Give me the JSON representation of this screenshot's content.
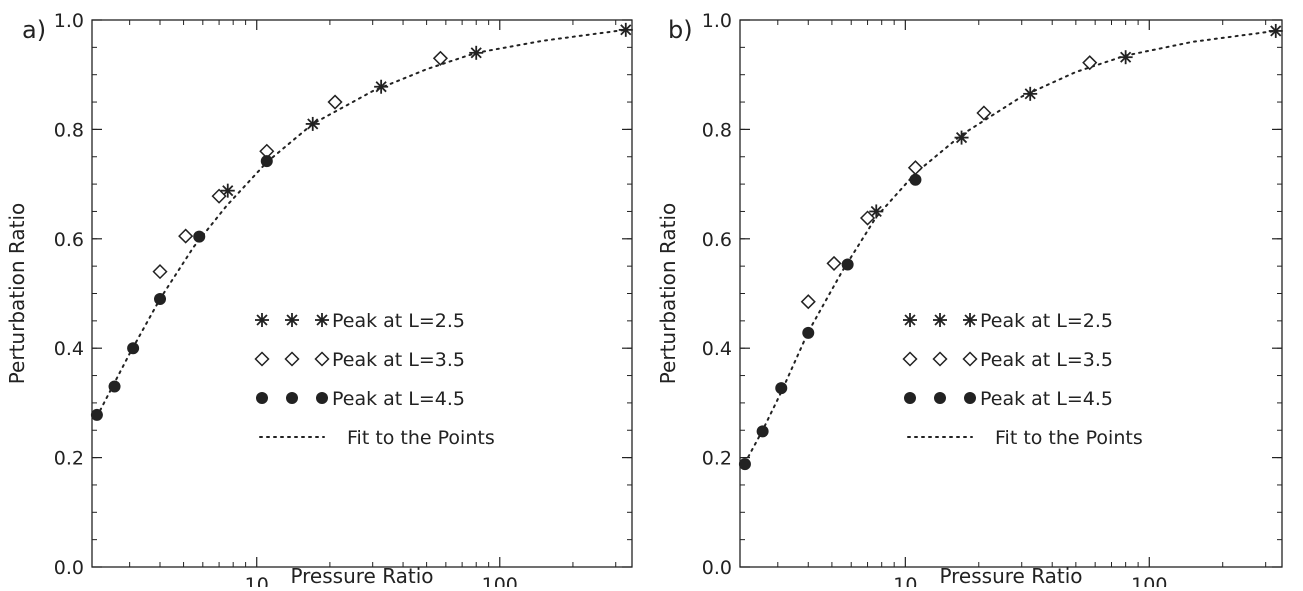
{
  "chart_data": [
    {
      "type": "scatter",
      "panel_label": "a)",
      "xlabel": "Pressure Ratio",
      "ylabel": "Perturbation Ratio",
      "x_scale": "log",
      "xlim": [
        2.1,
        350
      ],
      "ylim": [
        0.0,
        1.0
      ],
      "x_ticks": [
        10,
        100
      ],
      "x_tick_labels": [
        "10",
        "100"
      ],
      "y_ticks": [
        0.0,
        0.2,
        0.4,
        0.6,
        0.8,
        1.0
      ],
      "y_tick_labels": [
        "0.0",
        "0.2",
        "0.4",
        "0.6",
        "0.8",
        "1.0"
      ],
      "legend_position": "lower-right",
      "series": [
        {
          "name": "Peak at L=2.5",
          "marker": "asterisk",
          "points": [
            [
              7.6,
              0.688
            ],
            [
              17.0,
              0.81
            ],
            [
              32.5,
              0.878
            ],
            [
              80.0,
              0.94
            ],
            [
              330.0,
              0.982
            ]
          ]
        },
        {
          "name": "Peak at L=3.5",
          "marker": "diamond",
          "points": [
            [
              4.0,
              0.54
            ],
            [
              5.1,
              0.605
            ],
            [
              7.0,
              0.678
            ],
            [
              11.0,
              0.76
            ],
            [
              21.0,
              0.85
            ],
            [
              57.0,
              0.93
            ]
          ]
        },
        {
          "name": "Peak at L=4.5",
          "marker": "filled-circle",
          "points": [
            [
              2.2,
              0.278
            ],
            [
              2.6,
              0.33
            ],
            [
              3.1,
              0.4
            ],
            [
              4.0,
              0.49
            ],
            [
              5.8,
              0.604
            ],
            [
              11.0,
              0.742
            ]
          ]
        },
        {
          "name": "Fit to the Points",
          "marker": "dotted-line",
          "points": [
            [
              2.2,
              0.275
            ],
            [
              3.0,
              0.39
            ],
            [
              4.0,
              0.49
            ],
            [
              5.5,
              0.585
            ],
            [
              7.5,
              0.66
            ],
            [
              11.0,
              0.74
            ],
            [
              17.0,
              0.81
            ],
            [
              30.0,
              0.87
            ],
            [
              50.0,
              0.91
            ],
            [
              80.0,
              0.94
            ],
            [
              150.0,
              0.962
            ],
            [
              330.0,
              0.982
            ]
          ]
        }
      ]
    },
    {
      "type": "scatter",
      "panel_label": "b)",
      "xlabel": "Pressure Ratio",
      "ylabel": "Perturbation Ratio",
      "x_scale": "log",
      "xlim": [
        2.1,
        350
      ],
      "ylim": [
        0.0,
        1.0
      ],
      "x_ticks": [
        10,
        100
      ],
      "x_tick_labels": [
        "10",
        "100"
      ],
      "y_ticks": [
        0.0,
        0.2,
        0.4,
        0.6,
        0.8,
        1.0
      ],
      "y_tick_labels": [
        "0.0",
        "0.2",
        "0.4",
        "0.6",
        "0.8",
        "1.0"
      ],
      "legend_position": "lower-right",
      "series": [
        {
          "name": "Peak at L=2.5",
          "marker": "asterisk",
          "points": [
            [
              7.6,
              0.65
            ],
            [
              17.0,
              0.785
            ],
            [
              32.5,
              0.865
            ],
            [
              80.0,
              0.932
            ],
            [
              330.0,
              0.98
            ]
          ]
        },
        {
          "name": "Peak at L=3.5",
          "marker": "diamond",
          "points": [
            [
              4.0,
              0.485
            ],
            [
              5.1,
              0.555
            ],
            [
              7.0,
              0.638
            ],
            [
              11.0,
              0.73
            ],
            [
              21.0,
              0.83
            ],
            [
              57.0,
              0.922
            ]
          ]
        },
        {
          "name": "Peak at L=4.5",
          "marker": "filled-circle",
          "points": [
            [
              2.2,
              0.188
            ],
            [
              2.6,
              0.248
            ],
            [
              3.1,
              0.327
            ],
            [
              4.0,
              0.428
            ],
            [
              5.8,
              0.553
            ],
            [
              11.0,
              0.708
            ]
          ]
        },
        {
          "name": "Fit to the Points",
          "marker": "dotted-line",
          "points": [
            [
              2.2,
              0.19
            ],
            [
              2.6,
              0.25
            ],
            [
              3.1,
              0.32
            ],
            [
              4.0,
              0.43
            ],
            [
              5.5,
              0.54
            ],
            [
              7.6,
              0.64
            ],
            [
              11.0,
              0.72
            ],
            [
              17.0,
              0.79
            ],
            [
              30.0,
              0.86
            ],
            [
              50.0,
              0.905
            ],
            [
              80.0,
              0.935
            ],
            [
              150.0,
              0.96
            ],
            [
              330.0,
              0.98
            ]
          ]
        }
      ]
    }
  ]
}
